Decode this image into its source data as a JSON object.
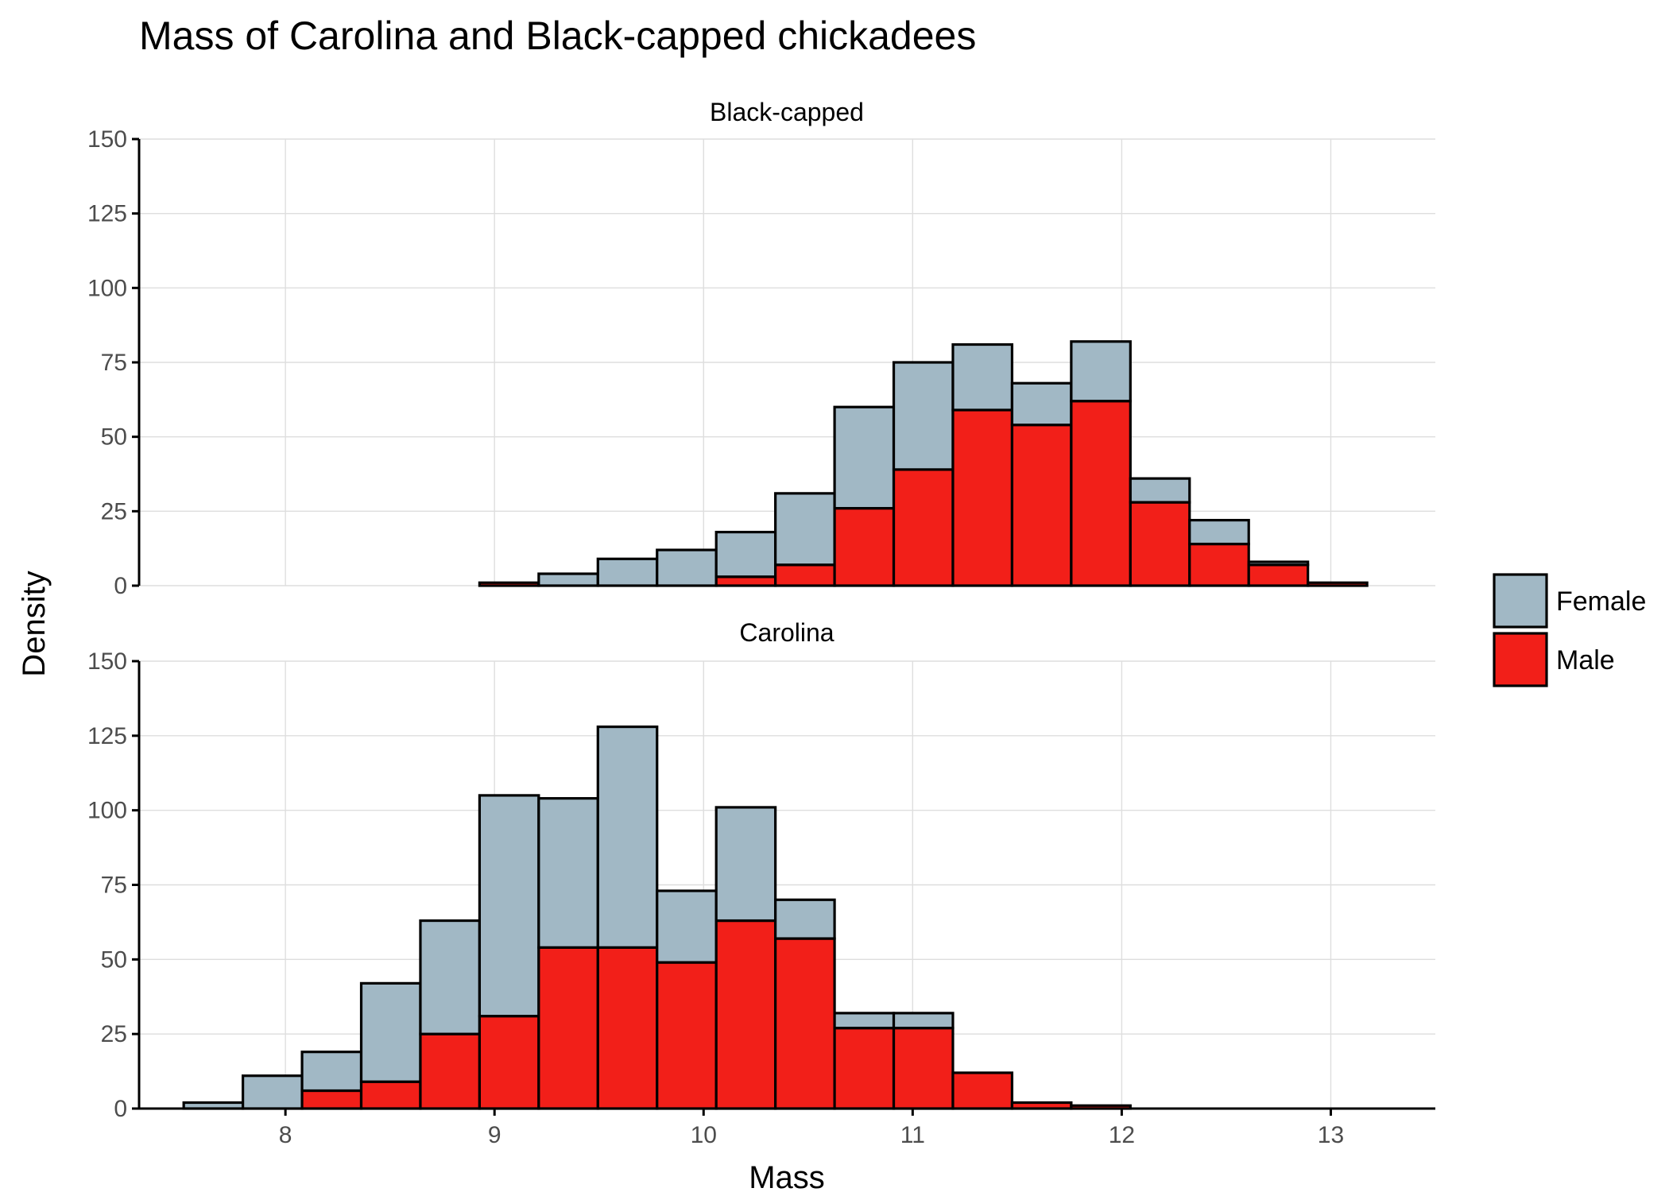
{
  "chart_data": {
    "type": "bar",
    "title": "Mass of Carolina and Black-capped chickadees",
    "xlabel": "Mass",
    "ylabel": "Density",
    "xlim": [
      7.3,
      13.5
    ],
    "ylim": [
      0,
      150
    ],
    "x_ticks": [
      8,
      9,
      10,
      11,
      12,
      13
    ],
    "y_ticks": [
      0,
      25,
      50,
      75,
      100,
      125,
      150
    ],
    "grid": true,
    "stacked": true,
    "bin_width": 0.283,
    "bin_centers": [
      7.655,
      7.938,
      8.221,
      8.504,
      8.787,
      9.07,
      9.353,
      9.636,
      9.919,
      10.202,
      10.485,
      10.768,
      11.051,
      11.334,
      11.617,
      11.9,
      12.183,
      12.466,
      12.749,
      13.032
    ],
    "legend": {
      "position": "right",
      "entries": [
        {
          "label": "Female",
          "color": "#a1b8c5"
        },
        {
          "label": "Male",
          "color": "#f21f19"
        }
      ]
    },
    "panels": [
      {
        "label": "Black-capped",
        "series": [
          {
            "name": "Male",
            "color": "#f21f19",
            "values": [
              0,
              0,
              0,
              0,
              0,
              1,
              0,
              0,
              0,
              3,
              7,
              26,
              39,
              59,
              54,
              62,
              28,
              14,
              7,
              1
            ]
          },
          {
            "name": "Female",
            "color": "#a1b8c5",
            "values": [
              0,
              0,
              0,
              0,
              0,
              0,
              4,
              9,
              12,
              15,
              24,
              34,
              36,
              22,
              14,
              20,
              8,
              8,
              1,
              0
            ]
          }
        ]
      },
      {
        "label": "Carolina",
        "series": [
          {
            "name": "Male",
            "color": "#f21f19",
            "values": [
              0,
              0,
              6,
              9,
              25,
              31,
              54,
              54,
              49,
              63,
              57,
              27,
              27,
              12,
              2,
              1,
              0,
              0,
              0,
              0
            ]
          },
          {
            "name": "Female",
            "color": "#a1b8c5",
            "values": [
              2,
              11,
              13,
              33,
              38,
              74,
              50,
              74,
              24,
              38,
              13,
              5,
              5,
              0,
              0,
              0,
              0,
              0,
              0,
              0
            ]
          }
        ]
      }
    ]
  }
}
